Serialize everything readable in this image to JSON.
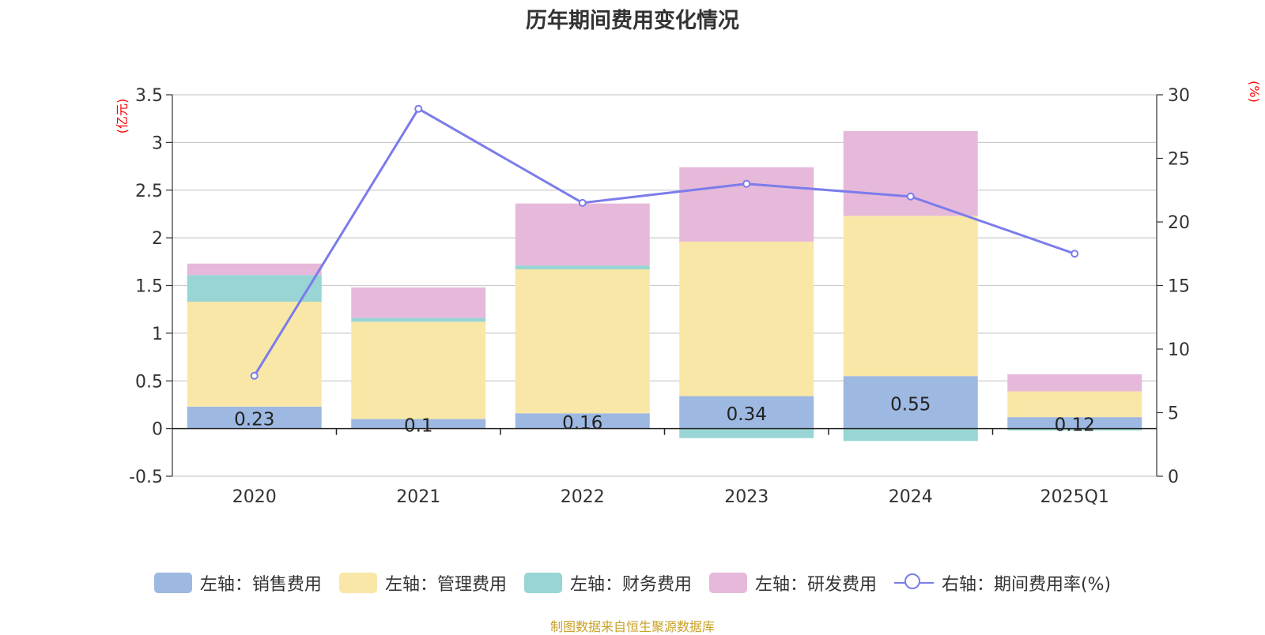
{
  "title": "历年期间费用变化情况",
  "source": "制图数据来自恒生聚源数据库",
  "colors": {
    "sales": "#9db8e1",
    "admin": "#f9e7a7",
    "finance": "#98d5d4",
    "rnd": "#e6b9da",
    "rate": "#7b7ceb",
    "source": "#c9a227",
    "axis_unit": "#ff0000"
  },
  "legend": [
    {
      "label": "左轴：销售费用",
      "key": "sales"
    },
    {
      "label": "左轴：管理费用",
      "key": "admin"
    },
    {
      "label": "左轴：财务费用",
      "key": "finance"
    },
    {
      "label": "左轴：研发费用",
      "key": "rnd"
    },
    {
      "label": "右轴：期间费用率(%)",
      "key": "rate"
    }
  ],
  "chart_data": {
    "type": "bar",
    "stacked": true,
    "title": "历年期间费用变化情况",
    "categories": [
      "2020",
      "2021",
      "2022",
      "2023",
      "2024",
      "2025Q1"
    ],
    "y_left": {
      "label": "(亿元)",
      "range": [
        -0.5,
        3.5
      ],
      "ticks": [
        -0.5,
        0,
        0.5,
        1,
        1.5,
        2,
        2.5,
        3,
        3.5
      ],
      "tick_labels": [
        "-0.5",
        "0",
        "0.5",
        "1",
        "1.5",
        "2",
        "2.5",
        "3",
        "3.5"
      ]
    },
    "y_right": {
      "label": "(%)",
      "range": [
        0,
        30
      ],
      "ticks": [
        0,
        5,
        10,
        15,
        20,
        25,
        30
      ],
      "tick_labels": [
        "0",
        "5",
        "10",
        "15",
        "20",
        "25",
        "30"
      ]
    },
    "series": [
      {
        "name": "左轴：销售费用",
        "key": "sales",
        "axis": "left",
        "type": "bar",
        "values": [
          0.23,
          0.1,
          0.16,
          0.34,
          0.55,
          0.12
        ],
        "data_labels": [
          "0.23",
          "0.1",
          "0.16",
          "0.34",
          "0.55",
          "0.12"
        ]
      },
      {
        "name": "左轴：管理费用",
        "key": "admin",
        "axis": "left",
        "type": "bar",
        "values": [
          1.1,
          1.02,
          1.51,
          1.62,
          1.68,
          0.27
        ]
      },
      {
        "name": "左轴：财务费用",
        "key": "finance",
        "axis": "left",
        "type": "bar",
        "values": [
          0.28,
          0.04,
          0.04,
          -0.1,
          -0.13,
          -0.02
        ]
      },
      {
        "name": "左轴：研发费用",
        "key": "rnd",
        "axis": "left",
        "type": "bar",
        "values": [
          0.12,
          0.32,
          0.65,
          0.78,
          0.89,
          0.18
        ]
      },
      {
        "name": "右轴：期间费用率(%)",
        "key": "rate",
        "axis": "right",
        "type": "line",
        "values": [
          7.9,
          28.9,
          21.5,
          23.0,
          22.0,
          17.5
        ]
      }
    ]
  }
}
